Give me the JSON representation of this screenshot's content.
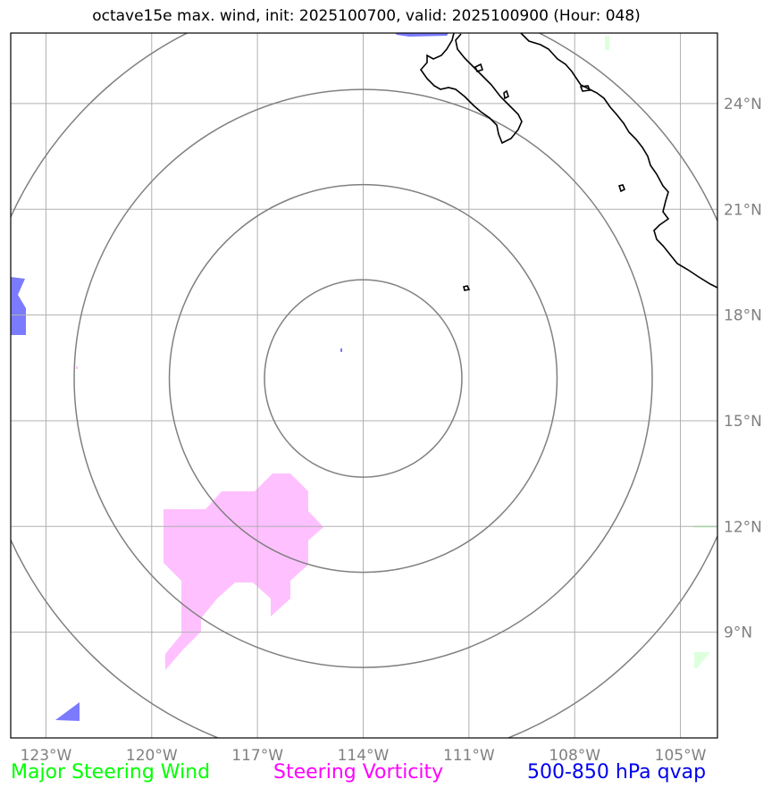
{
  "title": "octave15e max. wind, init: 2025100700, valid: 2025100900 (Hour: 048)",
  "lon_labels": [
    "123°W",
    "120°W",
    "117°W",
    "114°W",
    "111°W",
    "108°W",
    "105°W"
  ],
  "lat_labels": [
    "24°N",
    "21°N",
    "18°N",
    "15°N",
    "12°N",
    "9°N"
  ],
  "legend": {
    "wind": "Major Steering Wind",
    "vorticity": "Steering Vorticity",
    "qvap": "500-850 hPa qvap"
  },
  "colors": {
    "wind": "#00ff00",
    "vorticity": "#ff00ff",
    "qvap": "#0000ee",
    "vorticity_fill": "#ffc0ff",
    "qvap_fill": "#7b7bff",
    "wind_fill": "#ddffdd",
    "grid": "#b0b0b0",
    "rings": "#808080",
    "coast": "#000000"
  },
  "map": {
    "lon_range": [
      -124,
      -104
    ],
    "lat_range": [
      6,
      26
    ],
    "center": {
      "lon": -114,
      "lat": 16.2
    },
    "range_rings_deg": [
      2.8,
      5.5,
      8.2,
      11
    ]
  }
}
